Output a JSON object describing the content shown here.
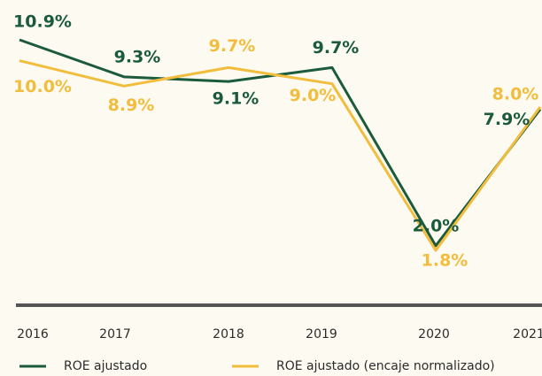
{
  "chart_data": {
    "type": "line",
    "categories": [
      "2016",
      "2017",
      "2018",
      "2019",
      "2020",
      "2021"
    ],
    "series": [
      {
        "name": "ROE ajustado",
        "color": "#1b5b3b",
        "values": [
          10.9,
          9.3,
          9.1,
          9.7,
          2.0,
          7.9
        ],
        "value_labels": [
          "10.9%",
          "9.3%",
          "9.1%",
          "9.7%",
          "2.0%",
          "7.9%"
        ]
      },
      {
        "name": "ROE ajustado (encaje normalizado)",
        "color": "#f2bd3c",
        "values": [
          10.0,
          8.9,
          9.7,
          9.0,
          1.8,
          8.0
        ],
        "value_labels": [
          "10.0%",
          "8.9%",
          "9.7%",
          "9.0%",
          "1.8%",
          "8.0%"
        ]
      }
    ]
  }
}
